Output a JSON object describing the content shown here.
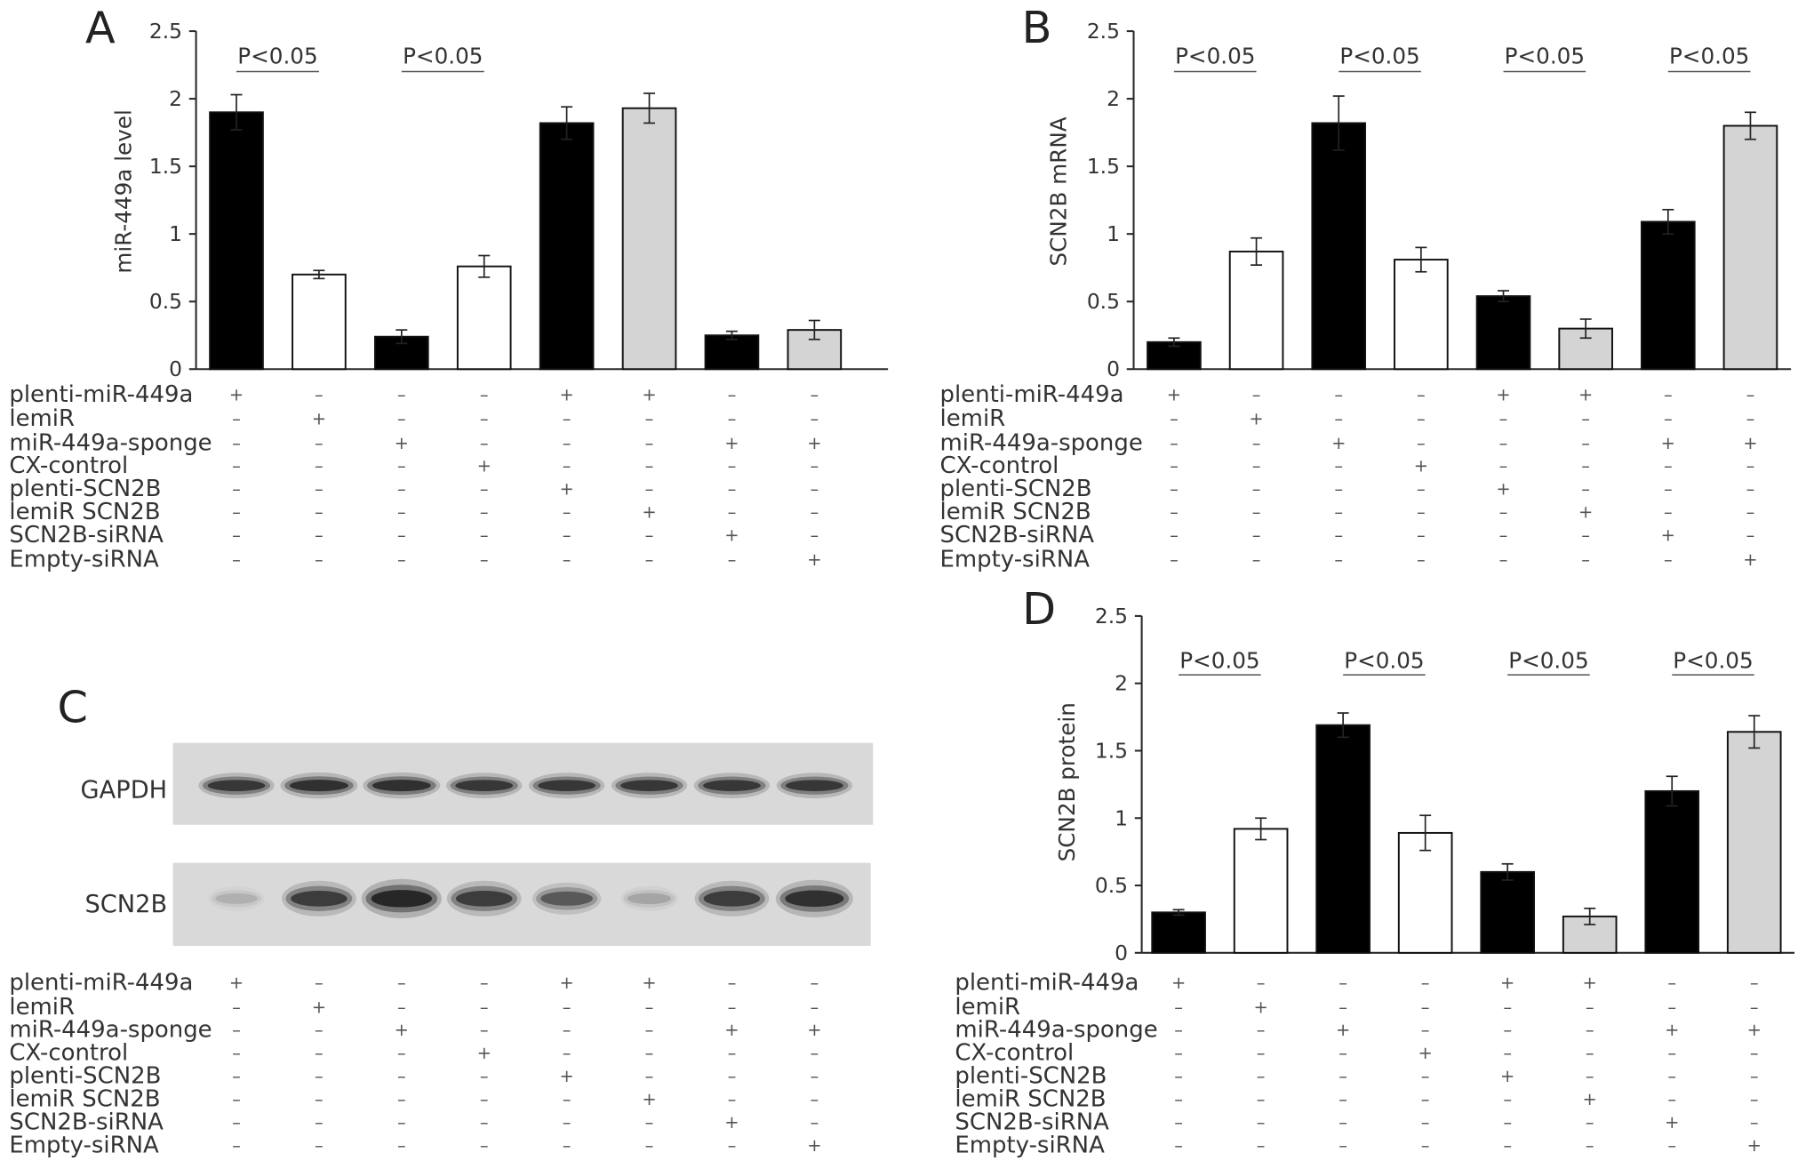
{
  "chart_data": [
    {
      "panel_letter": "A",
      "type": "bar",
      "ylabel": "miR-449a level",
      "ylim": [
        0,
        2.5
      ],
      "yticks": [
        0,
        0.5,
        1,
        1.5,
        2,
        2.5
      ],
      "grid": false,
      "values": [
        1.9,
        0.7,
        0.24,
        0.76,
        1.82,
        1.93,
        0.25,
        0.29
      ],
      "errors": [
        0.13,
        0.03,
        0.05,
        0.08,
        0.12,
        0.11,
        0.03,
        0.07
      ],
      "bar_colors": [
        "#000000",
        "#ffffff",
        "#000000",
        "#ffffff",
        "#000000",
        "#d4d4d4",
        "#000000",
        "#d4d4d4"
      ],
      "significance": [
        {
          "text": "P<0.05",
          "pair": [
            0,
            1
          ]
        },
        {
          "text": "P<0.05",
          "pair": [
            2,
            3
          ]
        }
      ],
      "conditions": [
        {
          "label": "plenti-miR-449a",
          "marks": [
            "+",
            "–",
            "–",
            "–",
            "+",
            "+",
            "–",
            "–"
          ]
        },
        {
          "label": "lemiR",
          "marks": [
            "–",
            "+",
            "–",
            "–",
            "–",
            "–",
            "–",
            "–"
          ]
        },
        {
          "label": "miR-449a-sponge",
          "marks": [
            "–",
            "–",
            "+",
            "–",
            "–",
            "–",
            "+",
            "+"
          ]
        },
        {
          "label": "CX-control",
          "marks": [
            "–",
            "–",
            "–",
            "+",
            "–",
            "–",
            "–",
            "–"
          ]
        },
        {
          "label": "plenti-SCN2B",
          "marks": [
            "–",
            "–",
            "–",
            "–",
            "+",
            "–",
            "–",
            "–"
          ]
        },
        {
          "label": "lemiR SCN2B",
          "marks": [
            "–",
            "–",
            "–",
            "–",
            "–",
            "+",
            "–",
            "–"
          ]
        },
        {
          "label": "SCN2B-siRNA",
          "marks": [
            "–",
            "–",
            "–",
            "–",
            "–",
            "–",
            "+",
            "–"
          ]
        },
        {
          "label": "Empty-siRNA",
          "marks": [
            "–",
            "–",
            "–",
            "–",
            "–",
            "–",
            "–",
            "+"
          ]
        }
      ]
    },
    {
      "panel_letter": "B",
      "type": "bar",
      "ylabel": "SCN2B mRNA",
      "ylim": [
        0,
        2.5
      ],
      "yticks": [
        0,
        0.5,
        1,
        1.5,
        2,
        2.5
      ],
      "grid": false,
      "values": [
        0.2,
        0.87,
        1.82,
        0.81,
        0.54,
        0.3,
        1.09,
        1.8
      ],
      "errors": [
        0.03,
        0.1,
        0.2,
        0.09,
        0.04,
        0.07,
        0.09,
        0.1
      ],
      "bar_colors": [
        "#000000",
        "#ffffff",
        "#000000",
        "#ffffff",
        "#000000",
        "#d4d4d4",
        "#000000",
        "#d4d4d4"
      ],
      "significance": [
        {
          "text": "P<0.05",
          "pair": [
            0,
            1
          ]
        },
        {
          "text": "P<0.05",
          "pair": [
            2,
            3
          ]
        },
        {
          "text": "P<0.05",
          "pair": [
            4,
            5
          ]
        },
        {
          "text": "P<0.05",
          "pair": [
            6,
            7
          ]
        }
      ],
      "conditions": [
        {
          "label": "plenti-miR-449a",
          "marks": [
            "+",
            "–",
            "–",
            "–",
            "+",
            "+",
            "–",
            "–"
          ]
        },
        {
          "label": "lemiR",
          "marks": [
            "–",
            "+",
            "–",
            "–",
            "–",
            "–",
            "–",
            "–"
          ]
        },
        {
          "label": "miR-449a-sponge",
          "marks": [
            "–",
            "–",
            "+",
            "–",
            "–",
            "–",
            "+",
            "+"
          ]
        },
        {
          "label": "CX-control",
          "marks": [
            "–",
            "–",
            "–",
            "+",
            "–",
            "–",
            "–",
            "–"
          ]
        },
        {
          "label": "plenti-SCN2B",
          "marks": [
            "–",
            "–",
            "–",
            "–",
            "+",
            "–",
            "–",
            "–"
          ]
        },
        {
          "label": "lemiR SCN2B",
          "marks": [
            "–",
            "–",
            "–",
            "–",
            "–",
            "+",
            "–",
            "–"
          ]
        },
        {
          "label": "SCN2B-siRNA",
          "marks": [
            "–",
            "–",
            "–",
            "–",
            "–",
            "–",
            "+",
            "–"
          ]
        },
        {
          "label": "Empty-siRNA",
          "marks": [
            "–",
            "–",
            "–",
            "–",
            "–",
            "–",
            "–",
            "+"
          ]
        }
      ]
    },
    {
      "panel_letter": "D",
      "type": "bar",
      "ylabel": "SCN2B protein",
      "ylim": [
        0,
        2.5
      ],
      "yticks": [
        0,
        0.5,
        1,
        1.5,
        2,
        2.5
      ],
      "grid": false,
      "values": [
        0.3,
        0.92,
        1.69,
        0.89,
        0.6,
        0.27,
        1.2,
        1.64
      ],
      "errors": [
        0.02,
        0.08,
        0.09,
        0.13,
        0.06,
        0.06,
        0.11,
        0.12
      ],
      "bar_colors": [
        "#000000",
        "#ffffff",
        "#000000",
        "#ffffff",
        "#000000",
        "#d4d4d4",
        "#000000",
        "#d4d4d4"
      ],
      "significance": [
        {
          "text": "P<0.05",
          "pair": [
            0,
            1
          ]
        },
        {
          "text": "P<0.05",
          "pair": [
            2,
            3
          ]
        },
        {
          "text": "P<0.05",
          "pair": [
            4,
            5
          ]
        },
        {
          "text": "P<0.05",
          "pair": [
            6,
            7
          ]
        }
      ],
      "conditions": [
        {
          "label": "plenti-miR-449a",
          "marks": [
            "+",
            "–",
            "–",
            "–",
            "+",
            "+",
            "–",
            "–"
          ]
        },
        {
          "label": "lemiR",
          "marks": [
            "–",
            "+",
            "–",
            "–",
            "–",
            "–",
            "–",
            "–"
          ]
        },
        {
          "label": "miR-449a-sponge",
          "marks": [
            "–",
            "–",
            "+",
            "–",
            "–",
            "–",
            "+",
            "+"
          ]
        },
        {
          "label": "CX-control",
          "marks": [
            "–",
            "–",
            "–",
            "+",
            "–",
            "–",
            "–",
            "–"
          ]
        },
        {
          "label": "plenti-SCN2B",
          "marks": [
            "–",
            "–",
            "–",
            "–",
            "+",
            "–",
            "–",
            "–"
          ]
        },
        {
          "label": "lemiR SCN2B",
          "marks": [
            "–",
            "–",
            "–",
            "–",
            "–",
            "+",
            "–",
            "–"
          ]
        },
        {
          "label": "SCN2B-siRNA",
          "marks": [
            "–",
            "–",
            "–",
            "–",
            "–",
            "–",
            "+",
            "–"
          ]
        },
        {
          "label": "Empty-siRNA",
          "marks": [
            "–",
            "–",
            "–",
            "–",
            "–",
            "–",
            "–",
            "+"
          ]
        }
      ]
    }
  ],
  "blot": {
    "panel_letter": "C",
    "rows": [
      {
        "label": "GAPDH",
        "band_intensity": [
          0.85,
          0.9,
          0.9,
          0.85,
          0.85,
          0.85,
          0.85,
          0.85
        ]
      },
      {
        "label": "SCN2B",
        "band_intensity": [
          0.15,
          0.8,
          1.0,
          0.8,
          0.6,
          0.2,
          0.8,
          0.9
        ]
      }
    ],
    "conditions": [
      {
        "label": "plenti-miR-449a",
        "marks": [
          "+",
          "–",
          "–",
          "–",
          "+",
          "+",
          "–",
          "–"
        ]
      },
      {
        "label": "lemiR",
        "marks": [
          "–",
          "+",
          "–",
          "–",
          "–",
          "–",
          "–",
          "–"
        ]
      },
      {
        "label": "miR-449a-sponge",
        "marks": [
          "–",
          "–",
          "+",
          "–",
          "–",
          "–",
          "+",
          "+"
        ]
      },
      {
        "label": "CX-control",
        "marks": [
          "–",
          "–",
          "–",
          "+",
          "–",
          "–",
          "–",
          "–"
        ]
      },
      {
        "label": "plenti-SCN2B",
        "marks": [
          "–",
          "–",
          "–",
          "–",
          "+",
          "–",
          "–",
          "–"
        ]
      },
      {
        "label": "lemiR SCN2B",
        "marks": [
          "–",
          "–",
          "–",
          "–",
          "–",
          "+",
          "–",
          "–"
        ]
      },
      {
        "label": "SCN2B-siRNA",
        "marks": [
          "–",
          "–",
          "–",
          "–",
          "–",
          "–",
          "+",
          "–"
        ]
      },
      {
        "label": "Empty-siRNA",
        "marks": [
          "–",
          "–",
          "–",
          "–",
          "–",
          "–",
          "–",
          "+"
        ]
      }
    ]
  }
}
